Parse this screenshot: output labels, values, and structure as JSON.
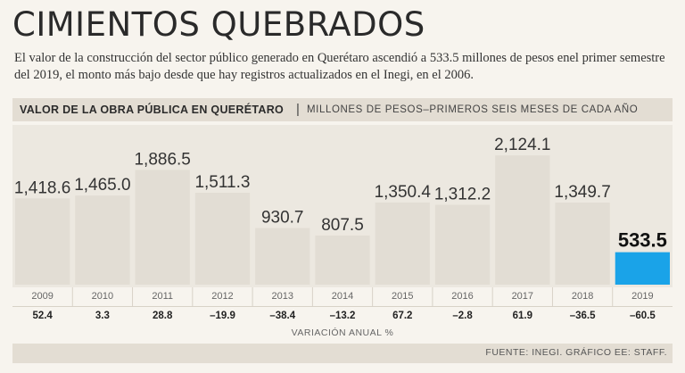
{
  "title": "CIMIENTOS QUEBRADOS",
  "subtitle": "El valor de la construcción del sector público generado en Querétaro ascendió a 533.5 millones de pesos enel primer semestre del 2019, el monto más bajo desde que hay registros actualizados en el Inegi, en el 2006.",
  "header": {
    "bold": "VALOR DE LA OBRA PÚBLICA EN QUERÉTARO",
    "separator": "|",
    "light": "MILLONES DE PESOS–PRIMEROS SEIS MESES DE CADA AÑO"
  },
  "variation_label": "VARIACIÓN ANUAL %",
  "source": "FUENTE: INEGI. GRÁFICO EE: STAFF.",
  "colors": {
    "bar": "#e2ddd4",
    "highlight": "#1aa3e8",
    "background": "#ece8e0"
  },
  "chart_data": {
    "type": "bar",
    "title": "VALOR DE LA OBRA PÚBLICA EN QUERÉTARO",
    "ylabel": "MILLONES DE PESOS",
    "ylim": [
      0,
      2200
    ],
    "categories": [
      "2009",
      "2010",
      "2011",
      "2012",
      "2013",
      "2014",
      "2015",
      "2016",
      "2017",
      "2018",
      "2019"
    ],
    "values": [
      1418.6,
      1465.0,
      1886.5,
      1511.3,
      930.7,
      807.5,
      1350.4,
      1312.2,
      2124.1,
      1349.7,
      533.5
    ],
    "value_labels": [
      "1,418.6",
      "1,465.0",
      "1,886.5",
      "1,511.3",
      "930.7",
      "807.5",
      "1,350.4",
      "1,312.2",
      "2,124.1",
      "1,349.7",
      "533.5"
    ],
    "variation": [
      "52.4",
      "3.3",
      "28.8",
      "–19.9",
      "–38.4",
      "–13.2",
      "67.2",
      "–2.8",
      "61.9",
      "–36.5",
      "–60.5"
    ],
    "highlight_index": 10
  }
}
